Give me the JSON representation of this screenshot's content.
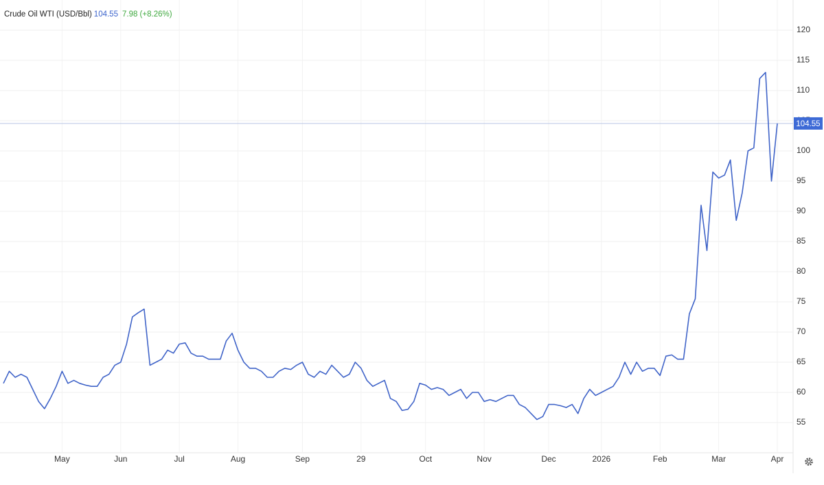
{
  "chart_data": {
    "type": "line",
    "title": "Crude Oil WTI (USD/Bbl)",
    "change": "7.98 (+8.26%)",
    "color": "#3f63c8",
    "grid": true,
    "categories": [
      null,
      null,
      null,
      null,
      null,
      null,
      null,
      null,
      null,
      null,
      "May",
      null,
      null,
      null,
      null,
      null,
      null,
      null,
      null,
      null,
      "Jun",
      null,
      null,
      null,
      null,
      null,
      null,
      null,
      null,
      null,
      "Jul",
      null,
      null,
      null,
      null,
      null,
      null,
      null,
      null,
      null,
      "Aug",
      null,
      null,
      null,
      null,
      null,
      null,
      null,
      null,
      null,
      null,
      "Sep",
      null,
      null,
      null,
      null,
      null,
      null,
      null,
      null,
      null,
      "29",
      null,
      null,
      null,
      null,
      null,
      null,
      null,
      null,
      null,
      null,
      "Oct",
      null,
      null,
      null,
      null,
      null,
      null,
      null,
      null,
      null,
      "Nov",
      null,
      null,
      null,
      null,
      null,
      null,
      null,
      null,
      null,
      null,
      "Dec",
      null,
      null,
      null,
      null,
      null,
      null,
      null,
      null,
      "2026",
      null,
      null,
      null,
      null,
      null,
      null,
      null,
      null,
      null,
      "Feb",
      null,
      null,
      null,
      null,
      null,
      null,
      null,
      null,
      null,
      "Mar",
      null,
      null,
      null,
      null,
      null,
      null,
      null,
      null,
      null,
      "Apr"
    ],
    "values": [
      61.5,
      63.5,
      62.5,
      63,
      62.5,
      60.5,
      58.5,
      57.3,
      59,
      61,
      63.5,
      61.5,
      62,
      61.5,
      61.2,
      61,
      61,
      62.5,
      63,
      64.5,
      65,
      68,
      72.5,
      73.2,
      73.8,
      64.5,
      65,
      65.5,
      67,
      66.5,
      68,
      68.2,
      66.5,
      66,
      66,
      65.5,
      65.5,
      65.5,
      68.5,
      69.8,
      67,
      65,
      64,
      64,
      63.5,
      62.5,
      62.5,
      63.5,
      64,
      63.8,
      64.5,
      65,
      63,
      62.5,
      63.5,
      63,
      64.5,
      63.5,
      62.5,
      63,
      65,
      64,
      62,
      61,
      61.5,
      62,
      59,
      58.5,
      57,
      57.2,
      58.5,
      61.5,
      61.2,
      60.5,
      60.8,
      60.5,
      59.5,
      60,
      60.5,
      59,
      60,
      60,
      58.5,
      58.8,
      58.5,
      59,
      59.5,
      59.5,
      58,
      57.5,
      56.5,
      55.5,
      56,
      58,
      58,
      57.8,
      57.5,
      58,
      56.5,
      59,
      60.5,
      59.5,
      60,
      60.5,
      61,
      62.5,
      65,
      63,
      65,
      63.5,
      64,
      64,
      62.8,
      66,
      66.2,
      65.5,
      65.5,
      73,
      75.5,
      91,
      83.5,
      96.5,
      95.5,
      96,
      98.5,
      88.5,
      93,
      100,
      100.5,
      112,
      113,
      95,
      104.55
    ],
    "ylim": [
      50,
      125
    ],
    "yticks": [
      55,
      60,
      65,
      70,
      75,
      80,
      85,
      90,
      95,
      100,
      105,
      110,
      115,
      120
    ]
  }
}
